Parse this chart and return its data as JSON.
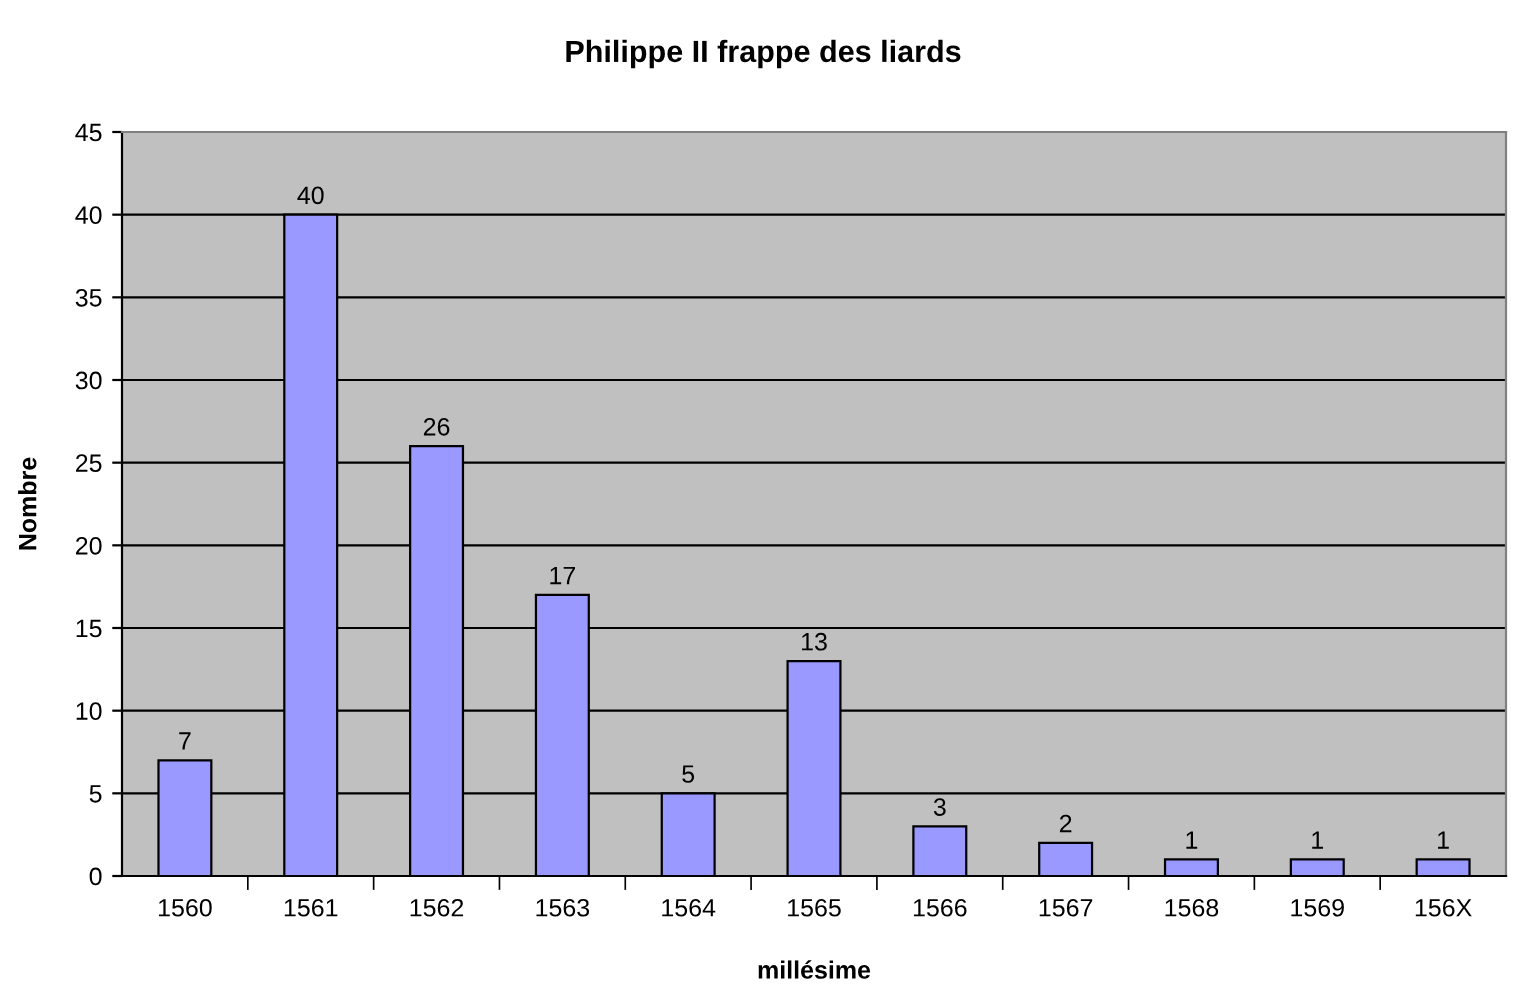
{
  "chart_data": {
    "type": "bar",
    "title": "Philippe II frappe des liards",
    "xlabel": "millésime",
    "ylabel": "Nombre",
    "categories": [
      "1560",
      "1561",
      "1562",
      "1563",
      "1564",
      "1565",
      "1566",
      "1567",
      "1568",
      "1569",
      "156X"
    ],
    "values": [
      7,
      40,
      26,
      17,
      5,
      13,
      3,
      2,
      1,
      1,
      1
    ],
    "color": "#9999ff",
    "ylim": [
      0,
      45
    ],
    "yticks": [
      0,
      5,
      10,
      15,
      20,
      25,
      30,
      35,
      40,
      45
    ],
    "grid": "y",
    "data_labels": true,
    "legend": false
  }
}
